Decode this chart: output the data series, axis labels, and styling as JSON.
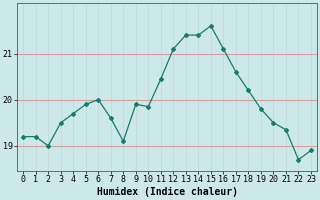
{
  "x": [
    0,
    1,
    2,
    3,
    4,
    5,
    6,
    7,
    8,
    9,
    10,
    11,
    12,
    13,
    14,
    15,
    16,
    17,
    18,
    19,
    20,
    21,
    22,
    23
  ],
  "y": [
    19.2,
    19.2,
    19.0,
    19.5,
    19.7,
    19.9,
    20.0,
    19.6,
    19.1,
    19.9,
    19.85,
    20.45,
    21.1,
    21.4,
    21.4,
    21.6,
    21.1,
    20.6,
    20.2,
    19.8,
    19.5,
    19.35,
    18.7,
    18.9
  ],
  "line_color": "#1a7a6e",
  "marker": "D",
  "marker_size": 2.0,
  "line_width": 0.9,
  "bg_color": "#cce8e8",
  "grid_color_h": "#d4a0a0",
  "grid_color_v": "#c0d8d8",
  "xlabel": "Humidex (Indice chaleur)",
  "xlabel_fontsize": 7,
  "yticks": [
    19,
    20,
    21
  ],
  "xticks": [
    0,
    1,
    2,
    3,
    4,
    5,
    6,
    7,
    8,
    9,
    10,
    11,
    12,
    13,
    14,
    15,
    16,
    17,
    18,
    19,
    20,
    21,
    22,
    23
  ],
  "ylim": [
    18.45,
    22.1
  ],
  "xlim": [
    -0.5,
    23.5
  ],
  "tick_fontsize": 6
}
